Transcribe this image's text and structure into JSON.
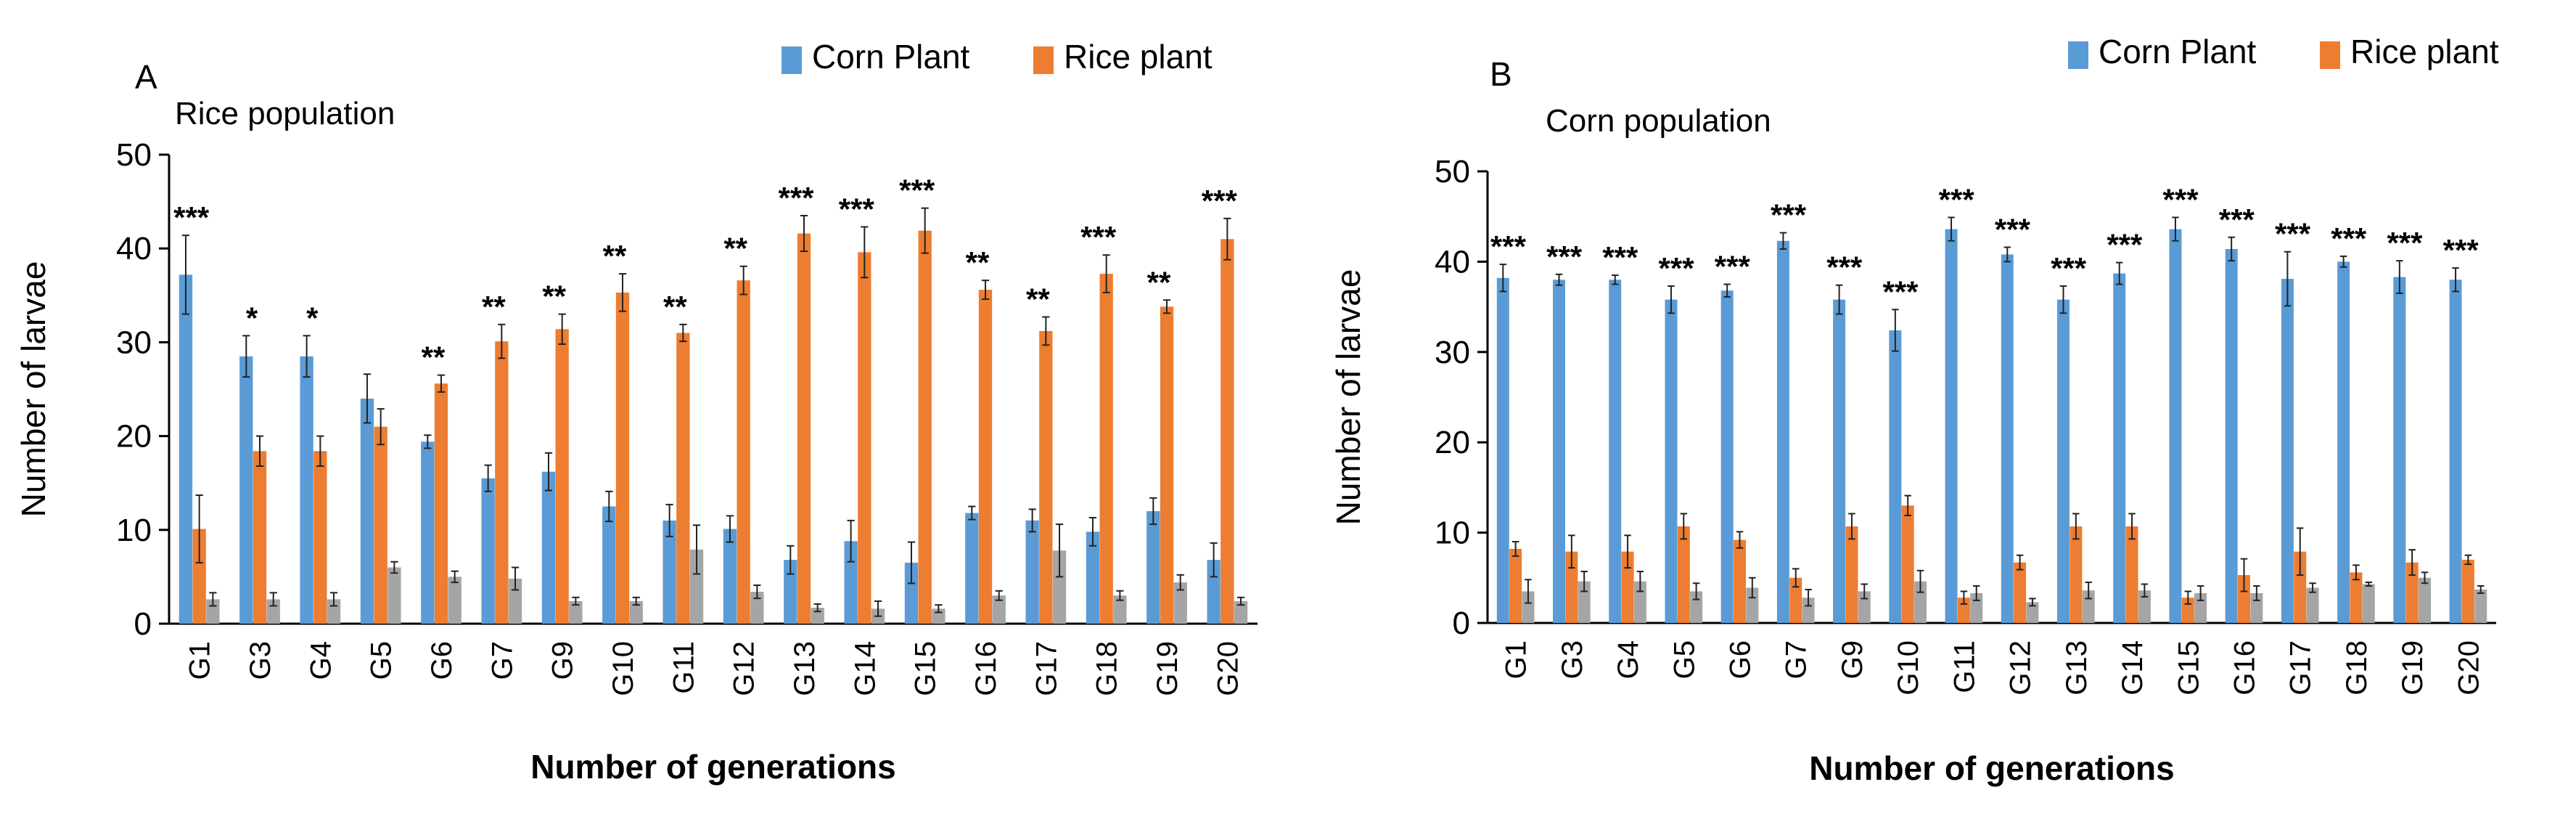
{
  "chart_data": [
    {
      "type": "bar",
      "panel_label": "A",
      "title": "Rice population",
      "xlabel": "Number of generations",
      "ylabel": "Number of larvae",
      "ylim": [
        0,
        50
      ],
      "yticks": [
        "0",
        "10",
        "20",
        "30",
        "40",
        "50"
      ],
      "categories": [
        "G1",
        "G3",
        "G4",
        "G5",
        "G6",
        "G7",
        "G9",
        "G10",
        "G11",
        "G12",
        "G13",
        "G14",
        "G15",
        "G16",
        "G17",
        "G18",
        "G19",
        "G20"
      ],
      "legend": [
        "Corn Plant",
        "Rice plant"
      ],
      "legend_position": "top-right",
      "series": [
        {
          "name": "Corn Plant",
          "color": "#5b9bd5",
          "values": [
            37.2,
            28.5,
            28.5,
            24.0,
            19.4,
            15.5,
            16.2,
            12.5,
            11.0,
            10.1,
            6.8,
            8.8,
            6.5,
            11.8,
            11.0,
            9.8,
            12.0,
            6.8
          ],
          "errors": [
            4.2,
            2.2,
            2.2,
            2.6,
            0.7,
            1.4,
            2.0,
            1.6,
            1.7,
            1.4,
            1.5,
            2.2,
            2.2,
            0.7,
            1.2,
            1.5,
            1.4,
            1.8
          ]
        },
        {
          "name": "Rice plant",
          "color": "#ed7d31",
          "values": [
            10.1,
            18.4,
            18.4,
            21.0,
            25.6,
            30.1,
            31.4,
            35.3,
            31.0,
            36.6,
            41.6,
            39.6,
            41.9,
            35.6,
            31.2,
            37.3,
            33.8,
            41.0
          ],
          "errors": [
            3.6,
            1.6,
            1.6,
            1.9,
            0.9,
            1.8,
            1.6,
            2.0,
            0.9,
            1.5,
            1.9,
            2.7,
            2.4,
            1.0,
            1.5,
            2.0,
            0.7,
            2.2
          ]
        },
        {
          "name": "",
          "color": "#a5a5a5",
          "values": [
            2.6,
            2.6,
            2.6,
            6.0,
            5.0,
            4.8,
            2.4,
            2.4,
            7.9,
            3.4,
            1.7,
            1.6,
            1.6,
            3.0,
            7.8,
            3.0,
            4.4,
            2.4
          ],
          "errors": [
            0.7,
            0.7,
            0.7,
            0.6,
            0.6,
            1.2,
            0.4,
            0.4,
            2.6,
            0.7,
            0.4,
            0.8,
            0.4,
            0.5,
            2.8,
            0.5,
            0.8,
            0.4
          ]
        }
      ],
      "annotations": [
        "***",
        "*",
        "*",
        "",
        "**",
        "**",
        "**",
        "**",
        "**",
        "**",
        "***",
        "***",
        "***",
        "**",
        "**",
        "***",
        "**",
        "***"
      ]
    },
    {
      "type": "bar",
      "panel_label": "B",
      "title": "Corn population",
      "xlabel": "Number of generations",
      "ylabel": "Number of larvae",
      "ylim": [
        0,
        50
      ],
      "yticks": [
        "0",
        "10",
        "20",
        "30",
        "40",
        "50"
      ],
      "categories": [
        "G1",
        "G3",
        "G4",
        "G5",
        "G6",
        "G7",
        "G9",
        "G10",
        "G11",
        "G12",
        "G13",
        "G14",
        "G15",
        "G16",
        "G17",
        "G18",
        "G19",
        "G20"
      ],
      "legend": [
        "Corn Plant",
        "Rice plant"
      ],
      "legend_position": "top-right",
      "series": [
        {
          "name": "Corn Plant",
          "color": "#5b9bd5",
          "values": [
            38.2,
            38.0,
            38.0,
            35.8,
            36.8,
            42.3,
            35.8,
            32.4,
            43.6,
            40.8,
            35.8,
            38.7,
            43.6,
            41.4,
            38.1,
            40.0,
            38.3,
            38.0
          ],
          "errors": [
            1.5,
            0.6,
            0.5,
            1.5,
            0.7,
            0.9,
            1.6,
            2.3,
            1.3,
            0.8,
            1.5,
            1.2,
            1.3,
            1.3,
            3.0,
            0.6,
            1.8,
            1.3
          ]
        },
        {
          "name": "Rice plant",
          "color": "#ed7d31",
          "values": [
            8.2,
            7.9,
            7.9,
            10.7,
            9.2,
            5.0,
            10.7,
            13.0,
            2.8,
            6.7,
            10.7,
            10.7,
            2.8,
            5.3,
            7.9,
            5.6,
            6.7,
            7.0
          ],
          "errors": [
            0.8,
            1.8,
            1.8,
            1.4,
            0.9,
            1.0,
            1.4,
            1.1,
            0.7,
            0.8,
            1.4,
            1.4,
            0.7,
            1.8,
            2.6,
            0.8,
            1.4,
            0.5
          ]
        },
        {
          "name": "",
          "color": "#a5a5a5",
          "values": [
            3.5,
            4.6,
            4.6,
            3.5,
            3.9,
            2.8,
            3.5,
            4.6,
            3.3,
            2.3,
            3.6,
            3.6,
            3.3,
            3.3,
            3.9,
            4.3,
            5.0,
            3.7
          ],
          "errors": [
            1.3,
            1.1,
            1.1,
            0.9,
            1.1,
            0.9,
            0.8,
            1.2,
            0.8,
            0.4,
            0.9,
            0.7,
            0.8,
            0.8,
            0.5,
            0.2,
            0.6,
            0.4
          ]
        }
      ],
      "annotations": [
        "***",
        "***",
        "***",
        "***",
        "***",
        "***",
        "***",
        "***",
        "***",
        "***",
        "***",
        "***",
        "***",
        "***",
        "***",
        "***",
        "***",
        "***"
      ]
    }
  ]
}
